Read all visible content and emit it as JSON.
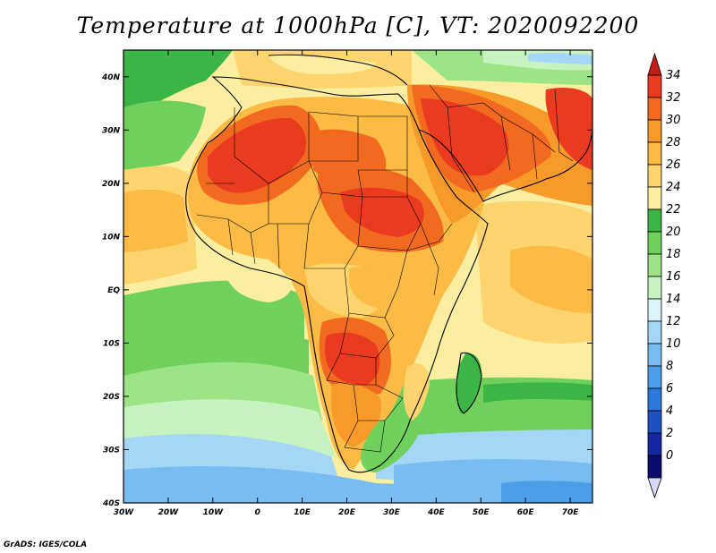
{
  "title": "Temperature at 1000hPa [C], VT: 2020092200",
  "footer": "GrADS: IGES/COLA",
  "map": {
    "lon_range": [
      -30,
      75
    ],
    "lat_range": [
      -40,
      45
    ],
    "x_ticks": [
      "30W",
      "20W",
      "10W",
      "0",
      "10E",
      "20E",
      "30E",
      "40E",
      "50E",
      "60E",
      "70E"
    ],
    "x_tick_lons": [
      -30,
      -20,
      -10,
      0,
      10,
      20,
      30,
      40,
      50,
      60,
      70
    ],
    "y_ticks": [
      "40N",
      "30N",
      "20N",
      "10N",
      "EQ",
      "10S",
      "20S",
      "30S",
      "40S"
    ],
    "y_tick_lats": [
      40,
      30,
      20,
      10,
      0,
      -10,
      -20,
      -30,
      -40
    ]
  },
  "colorbar": {
    "labels": [
      "34",
      "32",
      "30",
      "28",
      "26",
      "24",
      "22",
      "20",
      "18",
      "16",
      "14",
      "12",
      "10",
      "8",
      "6",
      "4",
      "2",
      "0"
    ],
    "colors": [
      "#ea3a1f",
      "#f26a20",
      "#f89a2a",
      "#fbbb45",
      "#fdd46e",
      "#fbeea0",
      "#3bb545",
      "#6fd15c",
      "#9de487",
      "#c7f3c0",
      "#dcf5fa",
      "#a6d6f5",
      "#78bdf2",
      "#4d9ee8",
      "#2d78d8",
      "#1f50c0",
      "#1428a0",
      "#0c0c6e"
    ],
    "over_color": "#c41d12",
    "under_color": "#d8d8f8"
  }
}
